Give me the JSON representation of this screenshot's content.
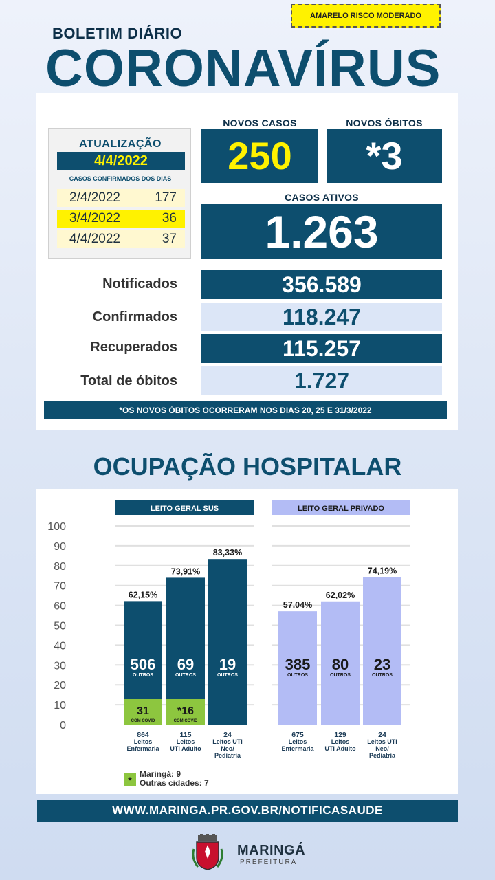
{
  "risk_badge": "AMARELO RISCO MODERADO",
  "header": {
    "subtitle": "BOLETIM DIÁRIO",
    "title": "CORONAVÍRUS"
  },
  "update": {
    "label": "ATUALIZAÇÃO",
    "date": "4/4/2022",
    "sub_label": "CASOS CONFIRMADOS DOS DIAS",
    "days": [
      {
        "date": "2/4/2022",
        "count": "177",
        "color": "#fff8d0"
      },
      {
        "date": "3/4/2022",
        "count": "36",
        "color": "#fff200"
      },
      {
        "date": "4/4/2022",
        "count": "37",
        "color": "#fff8d0"
      }
    ]
  },
  "new_cases": {
    "label": "NOVOS CASOS",
    "value": "250"
  },
  "new_deaths": {
    "label": "NOVOS ÓBITOS",
    "value": "*3"
  },
  "active_cases": {
    "label": "CASOS ATIVOS",
    "value": "1.263"
  },
  "metrics": [
    {
      "label": "Notificados",
      "value": "356.589"
    },
    {
      "label": "Confirmados",
      "value": "118.247"
    },
    {
      "label": "Recuperados",
      "value": "115.257"
    },
    {
      "label": "Total de óbitos",
      "value": "1.727"
    }
  ],
  "deaths_note": "*OS NOVOS  ÓBITOS OCORRERAM NOS DIAS 20, 25 E 31/3/2022",
  "hospital_title": "OCUPAÇÃO HOSPITALAR",
  "chart_data": [
    {
      "type": "bar",
      "title": "LEITO GERAL SUS",
      "ylim": [
        0,
        100
      ],
      "y_ticks": [
        0,
        10,
        20,
        30,
        40,
        50,
        60,
        70,
        80,
        90,
        100
      ],
      "grid": true,
      "categories": [
        {
          "count": "864",
          "lines": [
            "Leitos",
            "Enfermaria"
          ]
        },
        {
          "count": "115",
          "lines": [
            "Leitos",
            "UTI Adulto"
          ]
        },
        {
          "count": "24",
          "lines": [
            "Leitos UTI",
            "Neo/",
            "Pediatria"
          ]
        }
      ],
      "occupancy_pct": [
        62.15,
        73.91,
        83.33
      ],
      "occupancy_labels": [
        "62,15%",
        "73,91%",
        "83,33%"
      ],
      "others": [
        "506",
        "69",
        "19"
      ],
      "others_label": "OUTROS",
      "covid": [
        "31",
        "*16",
        null
      ],
      "covid_label": "COM COVID",
      "bar_color": "#0d4e6e",
      "covid_color": "#8dc63f",
      "text_color": "#ffffff"
    },
    {
      "type": "bar",
      "title": "LEITO GERAL PRIVADO",
      "ylim": [
        0,
        100
      ],
      "y_ticks": [
        0,
        10,
        20,
        30,
        40,
        50,
        60,
        70,
        80,
        90,
        100
      ],
      "grid": true,
      "categories": [
        {
          "count": "675",
          "lines": [
            "Leitos",
            "Enfermaria"
          ]
        },
        {
          "count": "129",
          "lines": [
            "Leitos",
            "UTI Adulto"
          ]
        },
        {
          "count": "24",
          "lines": [
            "Leitos UTI",
            "Neo/",
            "Pediatria"
          ]
        }
      ],
      "occupancy_pct": [
        57.04,
        62.02,
        74.19
      ],
      "occupancy_labels": [
        "57.04%",
        "62,02%",
        "74,19%"
      ],
      "others": [
        "385",
        "80",
        "23"
      ],
      "others_label": "OUTROS",
      "covid": [
        null,
        null,
        null
      ],
      "covid_label": "COM COVID",
      "bar_color": "#b3bcf5",
      "covid_color": "#8dc63f",
      "text_color": "#1a1a1a"
    }
  ],
  "legend": {
    "symbol": "*",
    "lines": [
      "Maringá: 9",
      "Outras cidades: 7"
    ]
  },
  "website": "WWW.MARINGA.PR.GOV.BR/NOTIFICASAUDE",
  "logo": {
    "name": "MARINGÁ",
    "sub": "PREFEITURA"
  },
  "colors": {
    "navy": "#0d4e6e",
    "yellow": "#fff200",
    "light_blue": "#dce6f7",
    "green": "#8dc63f",
    "lavender": "#b3bcf5"
  }
}
